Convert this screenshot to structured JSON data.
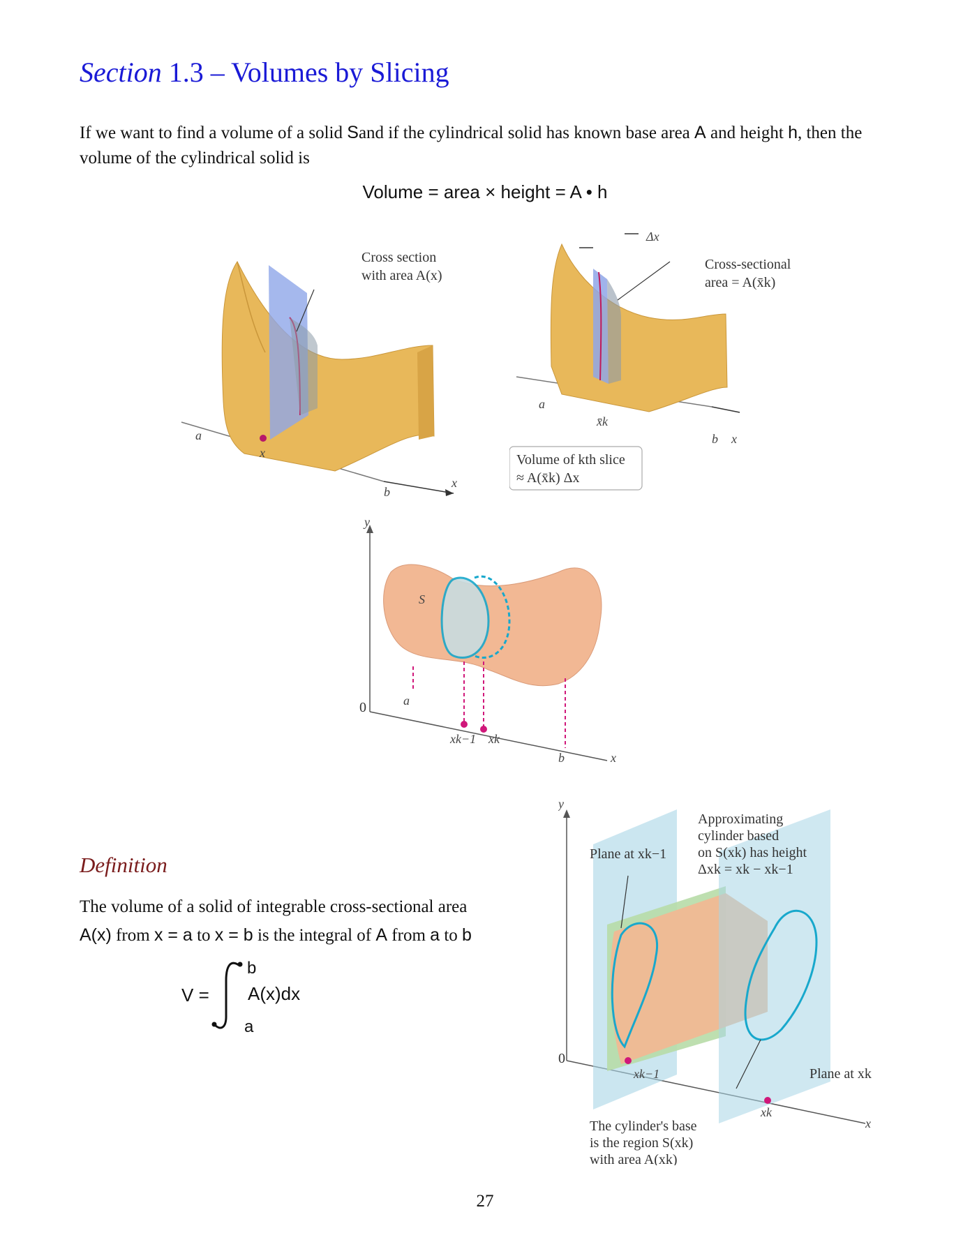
{
  "title": {
    "prefix": "Section",
    "rest": "1.3 – Volumes by Slicing"
  },
  "intro": {
    "p1": "If we want to find a volume of a solid",
    "S": "S",
    "p2": "and if the cylindrical solid has known base area",
    "A": "A",
    "p3": "and height",
    "h": "h",
    "p4": ", then the volume of the cylindrical solid is"
  },
  "formula": "Volume = area × height = A • h",
  "fig1": {
    "callout_line1": "Cross section",
    "callout_line2": "with area A(x)",
    "label_a": "a",
    "label_x": "x",
    "label_b": "b",
    "label_xaxis": "x"
  },
  "fig2": {
    "delta": "Δx",
    "callout_line1": "Cross-sectional",
    "callout_line2": "area = A(x̄k)",
    "label_a": "a",
    "label_xk": "x̄k",
    "label_b": "b",
    "label_xaxis": "x",
    "box_line1": "Volume of kth slice",
    "box_line2": "≈ A(x̄k) Δx"
  },
  "fig3": {
    "label_y": "y",
    "label_S": "S",
    "label_0": "0",
    "label_a": "a",
    "label_xk1": "xk−1",
    "label_xk": "xk",
    "label_b": "b",
    "label_x": "x"
  },
  "fig4": {
    "label_y": "y",
    "label_0": "0",
    "plane_left": "Plane at xk−1",
    "approx_line1": "Approximating",
    "approx_line2": "cylinder based",
    "approx_line3": "on S(xk) has height",
    "approx_line4": "Δxk = xk − xk−1",
    "label_xk1": "xk−1",
    "label_xk": "xk",
    "plane_right": "Plane at xk",
    "label_x": "x",
    "base_line1": "The cylinder's base",
    "base_line2": "is the region S(xk)",
    "base_line3": "with area A(xk)"
  },
  "definition": {
    "heading": "Definition",
    "line1": "The volume of a solid of integrable cross-sectional area",
    "Ax": "A(x)",
    "from": "from",
    "xa": "x = a",
    "to1": "to",
    "xb": "x = b",
    "is": "is the integral of",
    "A": "A",
    "from2": "from",
    "a": "a",
    "to2": "to",
    "b": "b",
    "V": "V =",
    "upper": "b",
    "lower": "a",
    "integrand": "A(x)dx"
  },
  "page_number": "27",
  "colors": {
    "title": "#1a1ad6",
    "definition": "#7a1c1c",
    "solid": "#e8b85a",
    "plane": "#8fa6e8",
    "cyan": "#18a8cc",
    "magenta": "#d0187a"
  }
}
